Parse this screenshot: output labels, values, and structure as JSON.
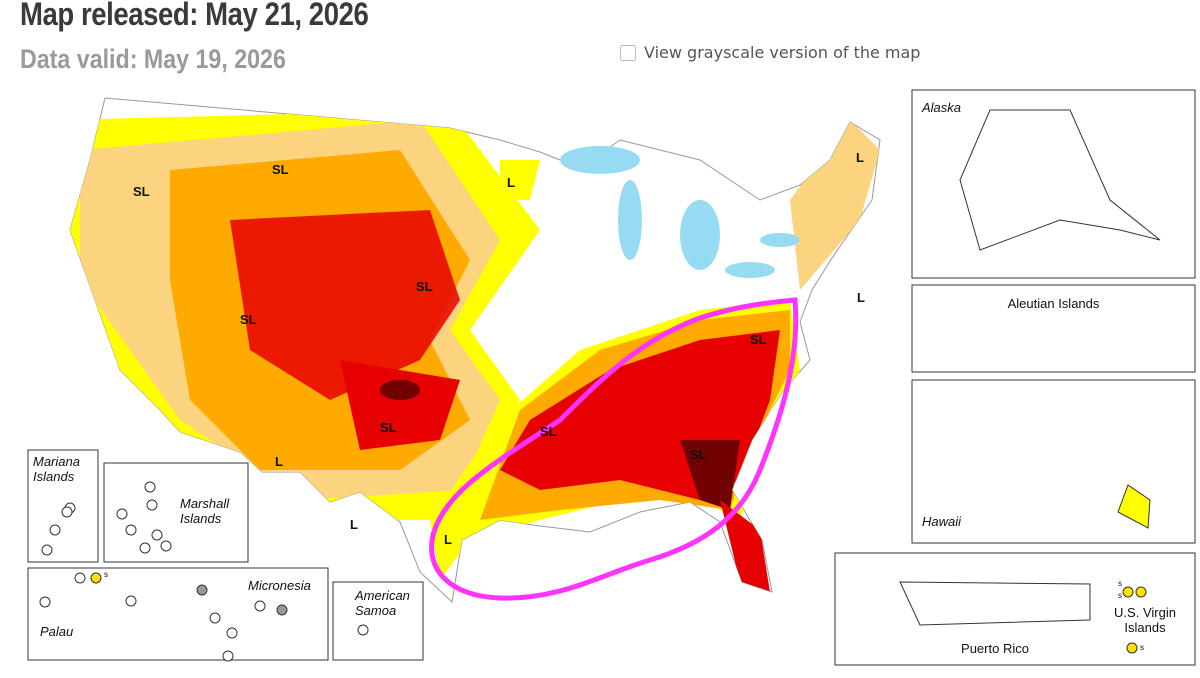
{
  "header": {
    "title": "Map released: May 21, 2026",
    "subtitle": "Data valid: May 19, 2026"
  },
  "grayscale_toggle": {
    "label": "View grayscale version of the map"
  },
  "insets": {
    "alaska": "Alaska",
    "aleutian": "Aleutian Islands",
    "hawaii": "Hawaii",
    "puerto_rico": "Puerto Rico",
    "virgin_islands": "U.S. Virgin Islands",
    "mariana": "Mariana Islands",
    "marshall": "Marshall Islands",
    "micronesia": "Micronesia",
    "palau": "Palau",
    "samoa": "American Samoa"
  },
  "impact_labels": [
    "SL",
    "SL",
    "SL",
    "SL",
    "SL",
    "SL",
    "SL",
    "SL",
    "L",
    "L",
    "L",
    "L",
    "L",
    "L"
  ],
  "marker_labels": [
    "s",
    "s",
    "s",
    "s"
  ]
}
